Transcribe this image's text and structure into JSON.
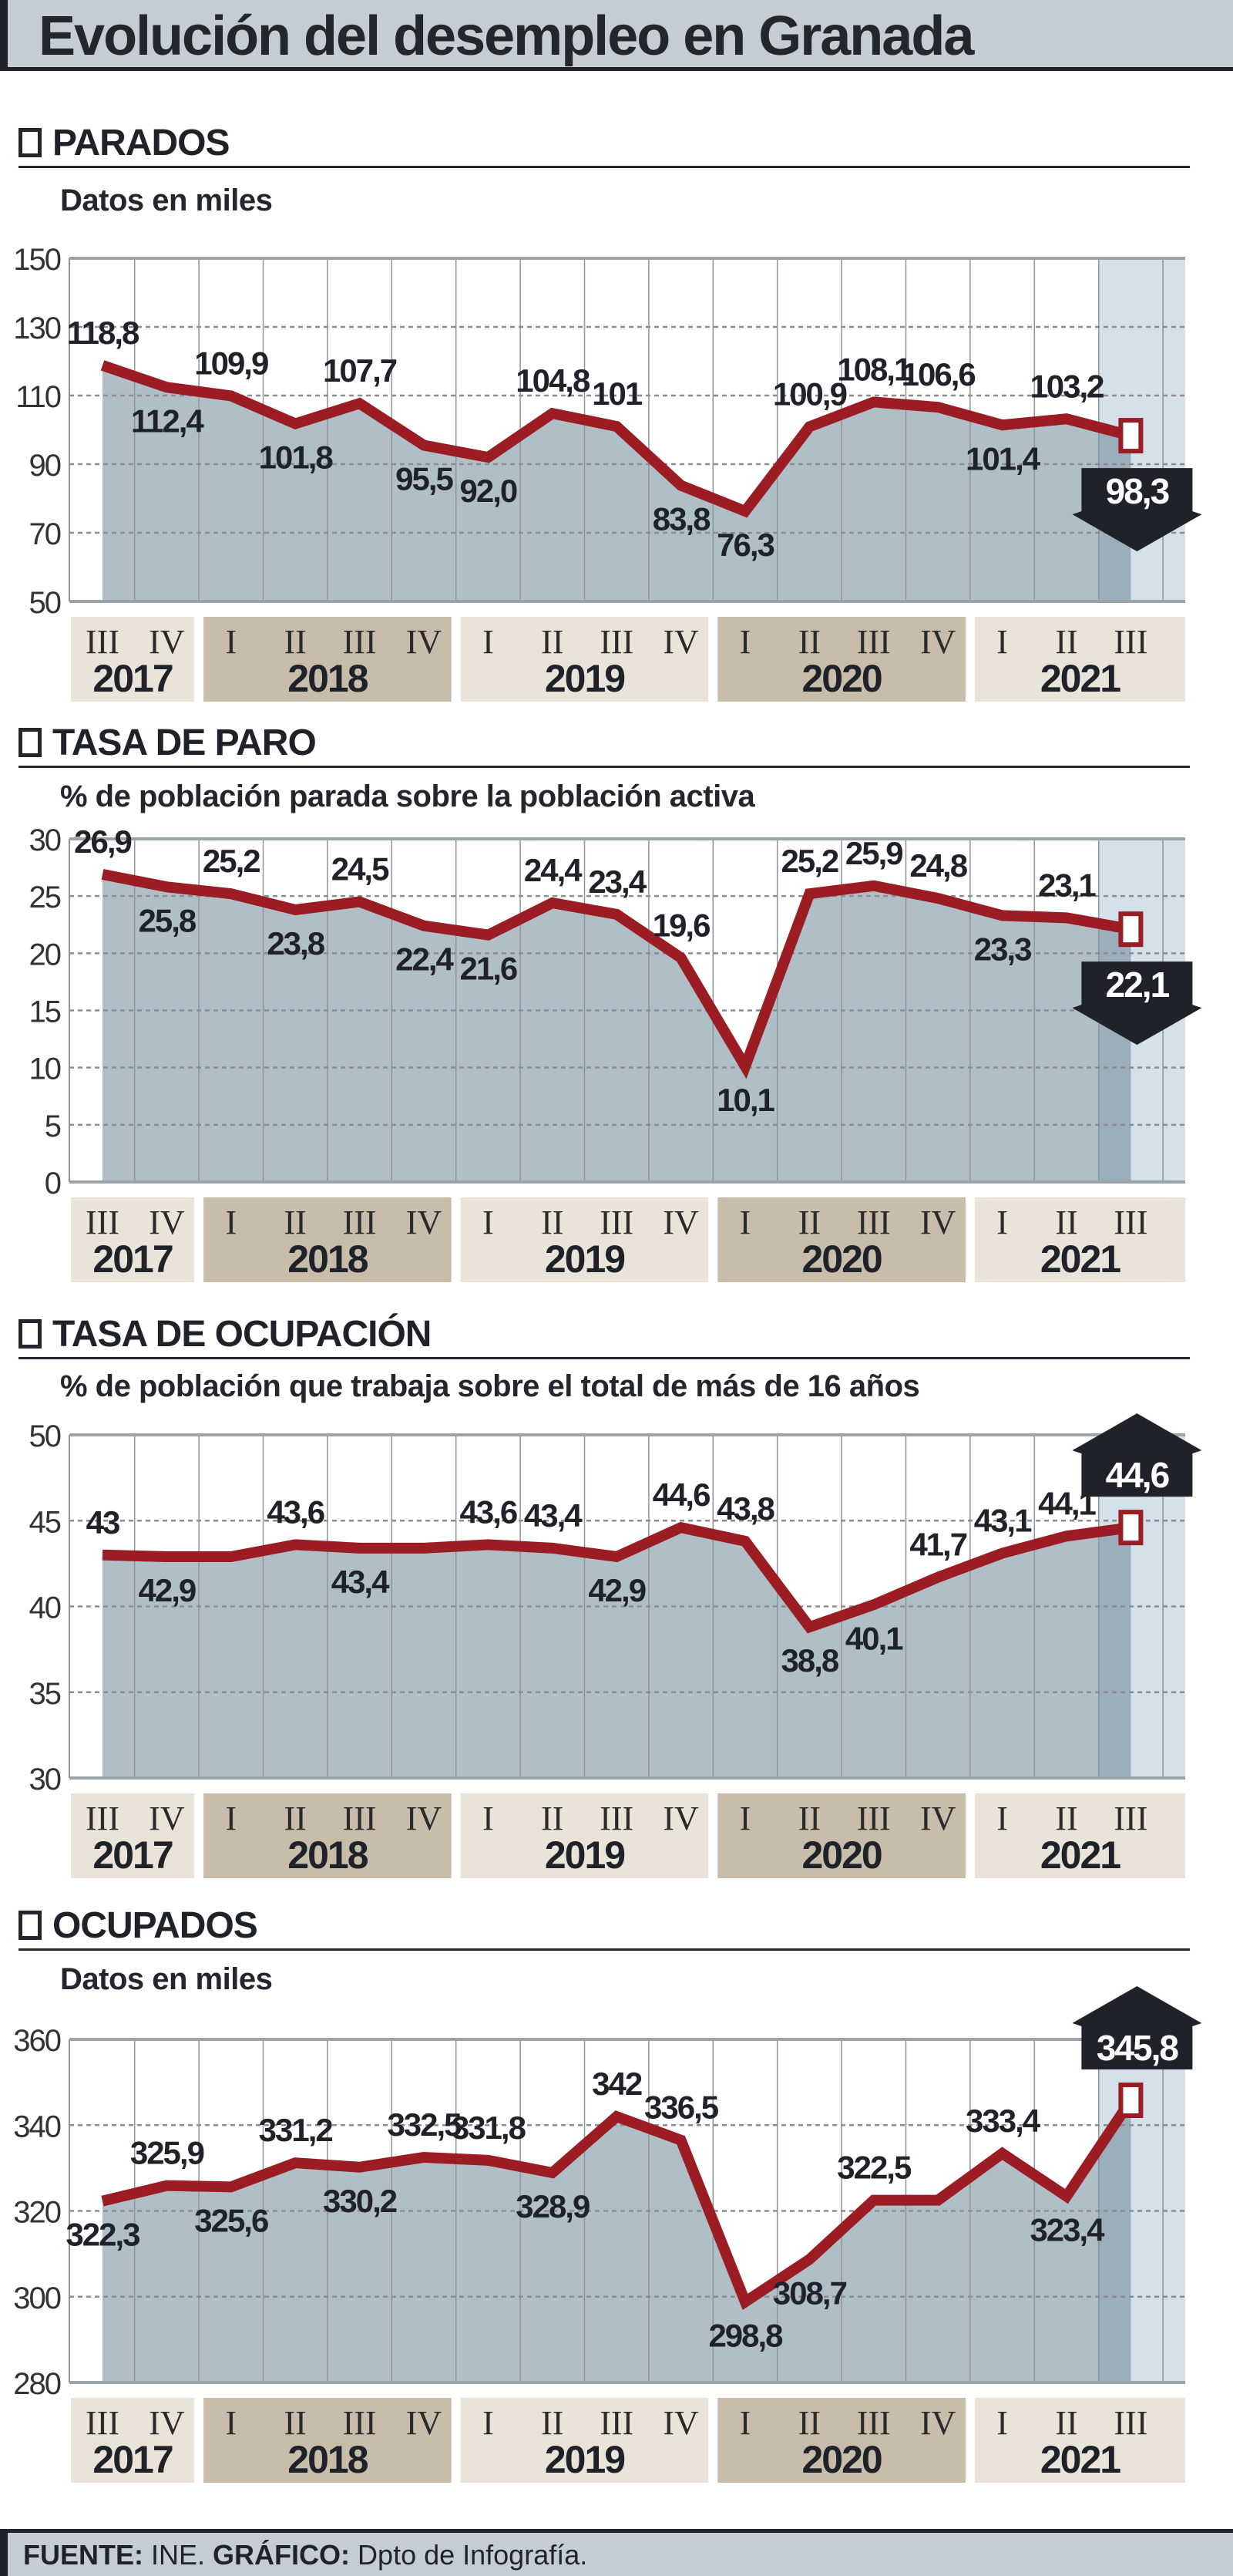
{
  "title": "Evolución del desempleo en Granada",
  "footer": {
    "source_label": "FUENTE:",
    "source": "INE.",
    "graphic_label": "GRÁFICO:",
    "graphic": "Dpto de Infografía."
  },
  "colors": {
    "line": "#9b1c22",
    "area": "#b0bec7",
    "area_last": "#9aaebb",
    "highlight_col": "#d5e1ea",
    "year_light": "#e9e3d9",
    "year_dark": "#c8bcaa",
    "callout": "#1f2329"
  },
  "sections": [
    {
      "header": "PARADOS",
      "subtitle": "Datos en miles"
    },
    {
      "header": "TASA DE PARO",
      "subtitle": "% de población parada sobre la población activa"
    },
    {
      "header": "TASA DE OCUPACIÓN",
      "subtitle": "% de población que trabaja sobre el total de más de 16 años"
    },
    {
      "header": "OCUPADOS",
      "subtitle": "Datos en miles"
    }
  ],
  "chart_data": [
    {
      "type": "area",
      "quarters": [
        "III",
        "IV",
        "I",
        "II",
        "III",
        "IV",
        "I",
        "II",
        "III",
        "IV",
        "I",
        "II",
        "III",
        "IV",
        "I",
        "II",
        "III"
      ],
      "years": [
        {
          "label": "2017",
          "quarters": 2
        },
        {
          "label": "2018",
          "quarters": 4
        },
        {
          "label": "2019",
          "quarters": 4
        },
        {
          "label": "2020",
          "quarters": 4
        },
        {
          "label": "2021",
          "quarters": 3
        }
      ],
      "values": [
        118.8,
        112.4,
        109.9,
        101.8,
        107.7,
        95.5,
        92.0,
        104.8,
        101,
        83.8,
        76.3,
        100.9,
        108.1,
        106.6,
        101.4,
        103.2,
        98.3
      ],
      "labels": [
        "118,8",
        "112,4",
        "109,9",
        "101,8",
        "107,7",
        "95,5",
        "92,0",
        "104,8",
        "101",
        "83,8",
        "76,3",
        "100,9",
        "108,1",
        "106,6",
        "101,4",
        "103,2",
        "98,3"
      ],
      "ylim": [
        50,
        150
      ],
      "yticks": [
        50,
        70,
        90,
        110,
        130,
        150
      ],
      "callout": {
        "value": "98,3",
        "direction": "down"
      }
    },
    {
      "type": "area",
      "quarters": [
        "III",
        "IV",
        "I",
        "II",
        "III",
        "IV",
        "I",
        "II",
        "III",
        "IV",
        "I",
        "II",
        "III",
        "IV",
        "I",
        "II",
        "III"
      ],
      "years": [
        {
          "label": "2017",
          "quarters": 2
        },
        {
          "label": "2018",
          "quarters": 4
        },
        {
          "label": "2019",
          "quarters": 4
        },
        {
          "label": "2020",
          "quarters": 4
        },
        {
          "label": "2021",
          "quarters": 3
        }
      ],
      "values": [
        26.9,
        25.8,
        25.2,
        23.8,
        24.5,
        22.4,
        21.6,
        24.4,
        23.4,
        19.6,
        10.1,
        25.2,
        25.9,
        24.8,
        23.3,
        23.1,
        22.1
      ],
      "labels": [
        "26,9",
        "25,8",
        "25,2",
        "23,8",
        "24,5",
        "22,4",
        "21,6",
        "24,4",
        "23,4",
        "19,6",
        "10,1",
        "25,2",
        "25,9",
        "24,8",
        "23,3",
        "23,1",
        "22,1"
      ],
      "ylim": [
        0,
        30
      ],
      "yticks": [
        0,
        5,
        10,
        15,
        20,
        25,
        30
      ],
      "callout": {
        "value": "22,1",
        "direction": "down"
      }
    },
    {
      "type": "area",
      "quarters": [
        "III",
        "IV",
        "I",
        "II",
        "III",
        "IV",
        "I",
        "II",
        "III",
        "IV",
        "I",
        "II",
        "III",
        "IV",
        "I",
        "II",
        "III"
      ],
      "years": [
        {
          "label": "2017",
          "quarters": 2
        },
        {
          "label": "2018",
          "quarters": 4
        },
        {
          "label": "2019",
          "quarters": 4
        },
        {
          "label": "2020",
          "quarters": 4
        },
        {
          "label": "2021",
          "quarters": 3
        }
      ],
      "values": [
        43,
        42.9,
        42.9,
        43.6,
        43.4,
        43.4,
        43.6,
        43.4,
        42.9,
        44.6,
        43.8,
        38.8,
        40.1,
        41.7,
        43.1,
        44.1,
        44.6
      ],
      "labels": [
        "43",
        "42,9",
        "",
        "43,6",
        "43,4",
        "",
        "43,6",
        "43,4",
        "42,9",
        "44,6",
        "43,8",
        "38,8",
        "40,1",
        "41,7",
        "43,1",
        "44,1",
        "44,6"
      ],
      "ylim": [
        30,
        50
      ],
      "yticks": [
        30,
        35,
        40,
        45,
        50
      ],
      "callout": {
        "value": "44,6",
        "direction": "up"
      }
    },
    {
      "type": "area",
      "quarters": [
        "III",
        "IV",
        "I",
        "II",
        "III",
        "IV",
        "I",
        "II",
        "III",
        "IV",
        "I",
        "II",
        "III",
        "IV",
        "I",
        "II",
        "III"
      ],
      "years": [
        {
          "label": "2017",
          "quarters": 2
        },
        {
          "label": "2018",
          "quarters": 4
        },
        {
          "label": "2019",
          "quarters": 4
        },
        {
          "label": "2020",
          "quarters": 4
        },
        {
          "label": "2021",
          "quarters": 3
        }
      ],
      "values": [
        322.3,
        325.9,
        325.6,
        331.2,
        330.2,
        332.5,
        331.8,
        328.9,
        342,
        336.5,
        298.8,
        308.7,
        322.5,
        322.5,
        333.4,
        323.4,
        345.8
      ],
      "labels": [
        "322,3",
        "325,9",
        "325,6",
        "331,2",
        "330,2",
        "332,5",
        "331,8",
        "328,9",
        "342",
        "336,5",
        "298,8",
        "308,7",
        "322,5",
        "",
        "333,4",
        "323,4",
        "345,8"
      ],
      "ylim": [
        280,
        360
      ],
      "yticks": [
        280,
        300,
        320,
        340,
        360
      ],
      "callout": {
        "value": "345,8",
        "direction": "up"
      }
    }
  ]
}
